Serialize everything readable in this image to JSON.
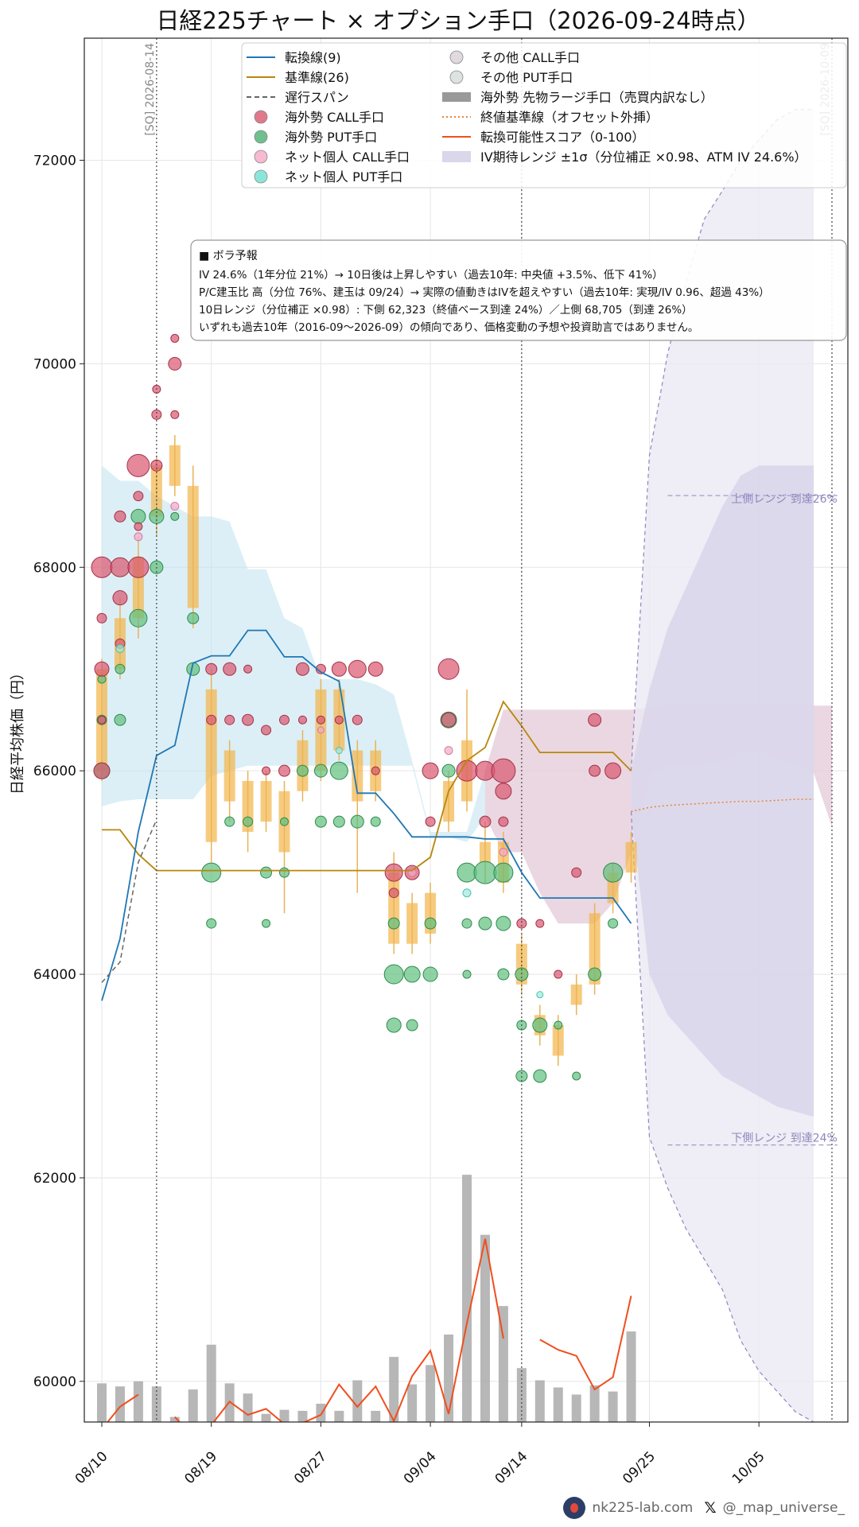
{
  "title": "日経225チャート × オプション手口（2026-09-24時点）",
  "ylabel": "日経平均株価（円）",
  "legend": [
    {
      "label": "転換線(9)",
      "kind": "line",
      "color": "#1f77b4"
    },
    {
      "label": "基準線(26)",
      "kind": "line",
      "color": "#b8860b"
    },
    {
      "label": "遅行スパン",
      "kind": "dash",
      "color": "#666666"
    },
    {
      "label": "海外勢 CALL手口",
      "kind": "dot",
      "color": "#d9566f"
    },
    {
      "label": "海外勢 PUT手口",
      "kind": "dot",
      "color": "#4caf72"
    },
    {
      "label": "ネット個人 CALL手口",
      "kind": "dot",
      "color": "#f4a9c6"
    },
    {
      "label": "ネット個人 PUT手口",
      "kind": "dot",
      "color": "#6ee0d0"
    },
    {
      "label": "その他 CALL手口",
      "kind": "dot",
      "color": "#d8d0d6"
    },
    {
      "label": "その他 PUT手口",
      "kind": "dot",
      "color": "#d4dcd8"
    },
    {
      "label": "海外勢 先物ラージ手口（売買内訳なし）",
      "kind": "bar",
      "color": "#999999"
    },
    {
      "label": "終値基準線（オフセット外挿）",
      "kind": "dot-line",
      "color": "#e6843a"
    },
    {
      "label": "転換可能性スコア（0-100）",
      "kind": "line",
      "color": "#f04e1e"
    },
    {
      "label": "IV期待レンジ ±1σ（分位補正 ×0.98、ATM IV 24.6%）",
      "kind": "area",
      "color": "#c9c6e0"
    }
  ],
  "info_box": {
    "heading": "■ ボラ予報",
    "lines": [
      "IV 24.6%（1年分位 21%）→ 10日後は上昇しやすい（過去10年: 中央値 +3.5%、低下 41%）",
      "P/C建玉比 高（分位 76%、建玉は 09/24）→ 実際の値動きはIVを超えやすい（過去10年: 実現/IV 0.96、超過 43%）",
      "10日レンジ（分位補正 ×0.98）: 下側 62,323（終値ベース到達 24%）／上側 68,705（到達 26%）",
      "いずれも過去10年（2016-09〜2026-09）の傾向であり、価格変動の予想や投資助言ではありません。"
    ]
  },
  "sq_labels": [
    "[SQ] 2026-08-14",
    "[SQ] 2026-10-09"
  ],
  "range_labels": {
    "upper": "上側レンジ 到達26%",
    "lower": "下側レンジ 到達24%"
  },
  "footer": {
    "site": "nk225-lab.com",
    "x_mark": "𝕏",
    "handle": "@_map_universe_"
  },
  "chart_data": {
    "type": "line",
    "title": "日経225チャート × オプション手口（2026-09-24時点）",
    "ylabel": "日経平均株価（円）",
    "ylim": [
      59600,
      73200
    ],
    "yticks": [
      60000,
      62000,
      64000,
      66000,
      68000,
      70000,
      72000
    ],
    "xticks": [
      {
        "label": "08/10",
        "idx": 0
      },
      {
        "label": "08/19",
        "idx": 6
      },
      {
        "label": "08/27",
        "idx": 12
      },
      {
        "label": "09/04",
        "idx": 18
      },
      {
        "label": "09/14",
        "idx": 23
      },
      {
        "label": "09/25",
        "idx": 30
      },
      {
        "label": "10/05",
        "idx": 36
      }
    ],
    "x_count": 41,
    "sq_idx": [
      3,
      40
    ],
    "vline_idx": [
      23
    ],
    "grid": true,
    "tenkan": [
      63740,
      64350,
      65400,
      66150,
      66250,
      67060,
      67130,
      67130,
      67380,
      67380,
      67120,
      67120,
      66970,
      66880,
      65780,
      65780,
      65580,
      65350,
      65350,
      65350,
      65350,
      65330,
      65330,
      65000,
      64750,
      64750,
      64750,
      64750,
      64750,
      64500
    ],
    "kijun": [
      65420,
      65420,
      65180,
      65020,
      65020,
      65020,
      65020,
      65020,
      65020,
      65020,
      65020,
      65020,
      65020,
      65020,
      65020,
      65020,
      65020,
      65020,
      65150,
      65800,
      66100,
      66230,
      66680,
      66440,
      66180,
      66180,
      66180,
      66180,
      66180,
      66000
    ],
    "chikou": [
      63920,
      64120,
      65100,
      65520
    ],
    "cloud_upper": [
      69000,
      68850,
      68850,
      68700,
      68600,
      68500,
      68500,
      68450,
      67980,
      67980,
      67500,
      67400,
      66900,
      66900,
      66900,
      66850,
      66750,
      66100,
      65400,
      65400,
      65400,
      66000,
      66600,
      66600,
      66600,
      66600,
      66600,
      66600,
      66600,
      66600,
      66620,
      66640,
      66640,
      66640,
      66640,
      66640,
      66640,
      66640,
      66640,
      66640,
      66640
    ],
    "cloud_lower": [
      65650,
      65700,
      65720,
      65720,
      65720,
      65720,
      65950,
      66000,
      66050,
      66050,
      66050,
      66050,
      66050,
      66050,
      66050,
      66050,
      66050,
      66050,
      65350,
      65350,
      65300,
      65550,
      65200,
      65200,
      64800,
      64500,
      64500,
      64500,
      64700,
      65200,
      65950,
      66050,
      66060,
      66070,
      66100,
      66200,
      66200,
      66100,
      66080,
      65980,
      65450
    ],
    "candles": [
      [
        66000,
        67000,
        65900,
        67100
      ],
      [
        67000,
        67500,
        66900,
        67700
      ],
      [
        67500,
        68100,
        67300,
        68300
      ],
      [
        68500,
        69000,
        68300,
        69100
      ],
      [
        68800,
        69200,
        68700,
        69300
      ],
      [
        68800,
        67600,
        67400,
        69000
      ],
      [
        66800,
        65300,
        65100,
        67000
      ],
      [
        66200,
        65700,
        65500,
        66300
      ],
      [
        65900,
        65400,
        65200,
        66000
      ],
      [
        65900,
        65500,
        65400,
        66000
      ],
      [
        65800,
        65200,
        64600,
        65900
      ],
      [
        66300,
        65800,
        65700,
        66400
      ],
      [
        66800,
        66000,
        65900,
        66900
      ],
      [
        66800,
        66200,
        66100,
        66900
      ],
      [
        66200,
        65700,
        64800,
        66300
      ],
      [
        66200,
        65800,
        65700,
        66300
      ],
      [
        65000,
        64300,
        64200,
        65200
      ],
      [
        64700,
        64300,
        64200,
        64800
      ],
      [
        64800,
        64400,
        64300,
        64900
      ],
      [
        65900,
        65500,
        65400,
        66000
      ],
      [
        66300,
        65700,
        65600,
        66800
      ],
      [
        65300,
        65100,
        64900,
        65500
      ],
      [
        65300,
        64900,
        64800,
        65400
      ],
      [
        64300,
        63900,
        63800,
        64400
      ],
      [
        63600,
        63400,
        63300,
        63700
      ],
      [
        63500,
        63200,
        63100,
        63600
      ],
      [
        63900,
        63700,
        63600,
        64000
      ],
      [
        64600,
        63900,
        63800,
        64700
      ],
      [
        65000,
        64700,
        64600,
        65100
      ],
      [
        65300,
        65000,
        64900,
        65400
      ]
    ],
    "futures_large": [
      59980,
      59950,
      60000,
      59950,
      59650,
      59920,
      60360,
      59980,
      59880,
      59680,
      59720,
      59710,
      59780,
      59710,
      60010,
      59710,
      60240,
      59970,
      60160,
      60460,
      62030,
      61440,
      60740,
      60130,
      60010,
      59940,
      59870,
      59960,
      59900,
      60490
    ],
    "close_extrap": [
      65600,
      65640,
      65660,
      65670,
      65680,
      65690,
      65700,
      65700,
      65710,
      65720,
      65720
    ],
    "score": [
      59530,
      59750,
      59870,
      null,
      59650,
      59450,
      59570,
      59800,
      59670,
      59730,
      59580,
      59590,
      59670,
      59970,
      59750,
      59950,
      59610,
      60050,
      60300,
      59680,
      60570,
      61400,
      60420,
      null,
      60410,
      60310,
      60250,
      59920,
      60040,
      60840
    ],
    "iv_range_upper": [
      66000,
      69100,
      70100,
      70800,
      71420,
      71700,
      72000,
      72200,
      72400,
      72500,
      72500
    ],
    "iv_range_lower": [
      65600,
      62400,
      61900,
      61500,
      61200,
      60900,
      60400,
      60100,
      59900,
      59700,
      59600
    ],
    "iv_band_inner_upper": [
      66000,
      66800,
      67400,
      67800,
      68200,
      68600,
      68900,
      69000,
      69000,
      69000,
      69000
    ],
    "iv_band_inner_lower": [
      65600,
      64000,
      63600,
      63400,
      63200,
      63000,
      62900,
      62800,
      62700,
      62650,
      62600
    ],
    "upper_range_level": 68705,
    "lower_range_level": 62323,
    "foreign_call": [
      [
        0,
        68000,
        13
      ],
      [
        0,
        67500,
        6
      ],
      [
        0,
        67000,
        9
      ],
      [
        0,
        66500,
        5
      ],
      [
        0,
        66000,
        10
      ],
      [
        1,
        68500,
        7
      ],
      [
        1,
        68000,
        12
      ],
      [
        1,
        67700,
        9
      ],
      [
        1,
        67250,
        6
      ],
      [
        2,
        69000,
        14
      ],
      [
        2,
        68700,
        6
      ],
      [
        2,
        68400,
        5
      ],
      [
        2,
        68000,
        13
      ],
      [
        3,
        69750,
        5
      ],
      [
        3,
        69500,
        6
      ],
      [
        3,
        69000,
        7
      ],
      [
        4,
        70250,
        5
      ],
      [
        4,
        70000,
        8
      ],
      [
        4,
        69500,
        5
      ],
      [
        6,
        67000,
        7
      ],
      [
        6,
        66500,
        6
      ],
      [
        7,
        67000,
        8
      ],
      [
        7,
        66500,
        6
      ],
      [
        8,
        67000,
        5
      ],
      [
        8,
        66500,
        7
      ],
      [
        9,
        66400,
        6
      ],
      [
        9,
        66000,
        5
      ],
      [
        10,
        66500,
        6
      ],
      [
        10,
        66000,
        7
      ],
      [
        11,
        67000,
        8
      ],
      [
        11,
        66500,
        5
      ],
      [
        12,
        67000,
        6
      ],
      [
        12,
        66500,
        5
      ],
      [
        13,
        67000,
        9
      ],
      [
        13,
        66500,
        5
      ],
      [
        14,
        67000,
        11
      ],
      [
        14,
        66500,
        6
      ],
      [
        15,
        67000,
        9
      ],
      [
        15,
        66000,
        5
      ],
      [
        16,
        65000,
        11
      ],
      [
        16,
        64800,
        6
      ],
      [
        17,
        65000,
        9
      ],
      [
        18,
        66000,
        10
      ],
      [
        18,
        65500,
        6
      ],
      [
        19,
        67000,
        13
      ],
      [
        19,
        66500,
        9
      ],
      [
        20,
        66000,
        13
      ],
      [
        21,
        66000,
        12
      ],
      [
        21,
        65500,
        7
      ],
      [
        22,
        66000,
        15
      ],
      [
        22,
        65800,
        10
      ],
      [
        22,
        65500,
        6
      ],
      [
        23,
        64500,
        6
      ],
      [
        24,
        64500,
        5
      ],
      [
        25,
        64000,
        5
      ],
      [
        26,
        65000,
        6
      ],
      [
        27,
        66500,
        8
      ],
      [
        27,
        66000,
        7
      ],
      [
        28,
        66000,
        10
      ]
    ],
    "foreign_put": [
      [
        0,
        66000,
        10
      ],
      [
        0,
        66500,
        6
      ],
      [
        0,
        66900,
        5
      ],
      [
        1,
        66500,
        7
      ],
      [
        1,
        67000,
        6
      ],
      [
        2,
        68500,
        9
      ],
      [
        2,
        67500,
        11
      ],
      [
        3,
        68500,
        9
      ],
      [
        3,
        68000,
        8
      ],
      [
        4,
        68500,
        5
      ],
      [
        5,
        67500,
        7
      ],
      [
        5,
        67000,
        8
      ],
      [
        6,
        65000,
        12
      ],
      [
        6,
        64500,
        6
      ],
      [
        7,
        65500,
        6
      ],
      [
        8,
        65500,
        6
      ],
      [
        9,
        65000,
        7
      ],
      [
        9,
        64500,
        5
      ],
      [
        10,
        65500,
        5
      ],
      [
        10,
        65000,
        6
      ],
      [
        11,
        66000,
        7
      ],
      [
        12,
        66000,
        8
      ],
      [
        12,
        65500,
        7
      ],
      [
        13,
        66000,
        11
      ],
      [
        13,
        65500,
        7
      ],
      [
        14,
        65500,
        8
      ],
      [
        15,
        65500,
        6
      ],
      [
        16,
        64500,
        7
      ],
      [
        16,
        64000,
        12
      ],
      [
        16,
        63500,
        9
      ],
      [
        17,
        64000,
        10
      ],
      [
        17,
        63500,
        7
      ],
      [
        18,
        64500,
        7
      ],
      [
        18,
        64000,
        9
      ],
      [
        19,
        66500,
        10
      ],
      [
        19,
        66000,
        8
      ],
      [
        20,
        65000,
        12
      ],
      [
        20,
        64500,
        6
      ],
      [
        20,
        64000,
        5
      ],
      [
        21,
        65000,
        14
      ],
      [
        21,
        64500,
        8
      ],
      [
        22,
        65000,
        12
      ],
      [
        22,
        64500,
        9
      ],
      [
        22,
        64000,
        7
      ],
      [
        23,
        64000,
        8
      ],
      [
        23,
        63500,
        6
      ],
      [
        23,
        63000,
        7
      ],
      [
        24,
        63500,
        9
      ],
      [
        24,
        63000,
        8
      ],
      [
        25,
        63500,
        5
      ],
      [
        26,
        63000,
        5
      ],
      [
        27,
        64000,
        8
      ],
      [
        28,
        65000,
        12
      ],
      [
        28,
        64500,
        6
      ]
    ],
    "retail_call": [
      [
        4,
        68600,
        5
      ],
      [
        2,
        68300,
        5
      ],
      [
        12,
        66400,
        4
      ],
      [
        17,
        65000,
        5
      ],
      [
        19,
        66200,
        5
      ],
      [
        22,
        65200,
        5
      ]
    ],
    "retail_put": [
      [
        1,
        67200,
        5
      ],
      [
        13,
        66200,
        4
      ],
      [
        20,
        64800,
        5
      ],
      [
        24,
        63800,
        4
      ]
    ]
  }
}
